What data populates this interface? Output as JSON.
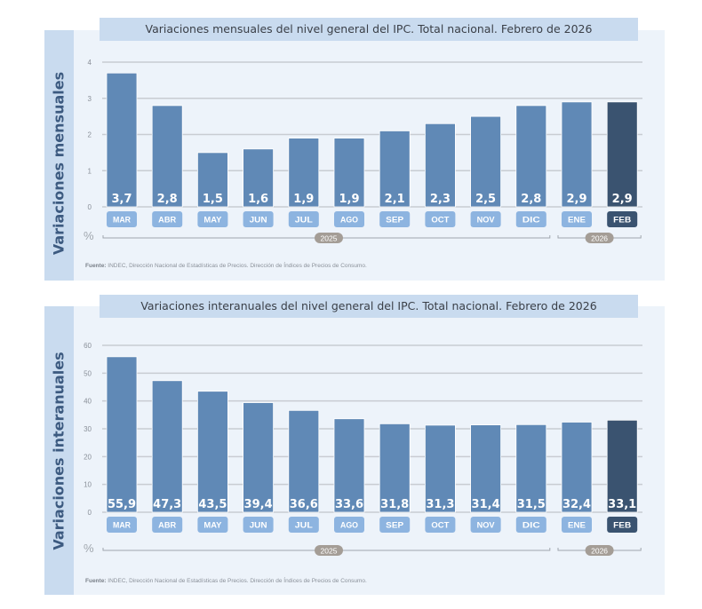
{
  "colors": {
    "bar": "#6089b6",
    "bar_highlight": "#3a5370",
    "month_tag": "#8db4e0",
    "month_tag_highlight": "#3a5370",
    "year_badge": "#a49d96",
    "grid": "#c8ccd2",
    "panel_bg": "#edf3fa",
    "strip_bg": "#c9dbef"
  },
  "chart_data": [
    {
      "type": "bar",
      "title": "Variaciones mensuales del nivel general del IPC. Total nacional. Febrero de 2026",
      "ylabel": "Variaciones mensuales",
      "unit_label": "%",
      "categories": [
        "MAR",
        "ABR",
        "MAY",
        "JUN",
        "JUL",
        "AGO",
        "SEP",
        "OCT",
        "NOV",
        "DIC",
        "ENE",
        "FEB"
      ],
      "values": [
        3.7,
        2.8,
        1.5,
        1.6,
        1.9,
        1.9,
        2.1,
        2.3,
        2.5,
        2.8,
        2.9,
        2.9
      ],
      "value_labels": [
        "3,7",
        "2,8",
        "1,5",
        "1,6",
        "1,9",
        "1,9",
        "2,1",
        "2,3",
        "2,5",
        "2,8",
        "2,9",
        "2,9"
      ],
      "highlight_index": 11,
      "ylim": [
        0,
        4
      ],
      "yticks": [
        "0",
        "1",
        "2",
        "3",
        "4"
      ],
      "grid": true,
      "year_groups": [
        {
          "label": "2025",
          "start": 0,
          "end": 9
        },
        {
          "label": "2026",
          "start": 10,
          "end": 11
        }
      ],
      "source_bold": "Fuente:",
      "source_text": " INDEC, Dirección Nacional de Estadísticas de Precios. Dirección de Índices de Precios de Consumo."
    },
    {
      "type": "bar",
      "title": "Variaciones interanuales del nivel general del IPC. Total nacional. Febrero de 2026",
      "ylabel": "Variaciones interanuales",
      "unit_label": "%",
      "categories": [
        "MAR",
        "ABR",
        "MAY",
        "JUN",
        "JUL",
        "AGO",
        "SEP",
        "OCT",
        "NOV",
        "DIC",
        "ENE",
        "FEB"
      ],
      "values": [
        55.9,
        47.3,
        43.5,
        39.4,
        36.6,
        33.6,
        31.8,
        31.3,
        31.4,
        31.5,
        32.4,
        33.1
      ],
      "value_labels": [
        "55,9",
        "47,3",
        "43,5",
        "39,4",
        "36,6",
        "33,6",
        "31,8",
        "31,3",
        "31,4",
        "31,5",
        "32,4",
        "33,1"
      ],
      "highlight_index": 11,
      "ylim": [
        0,
        60
      ],
      "yticks": [
        "0",
        "10",
        "20",
        "30",
        "40",
        "50",
        "60"
      ],
      "grid": true,
      "year_groups": [
        {
          "label": "2025",
          "start": 0,
          "end": 9
        },
        {
          "label": "2026",
          "start": 10,
          "end": 11
        }
      ],
      "source_bold": "Fuente:",
      "source_text": " INDEC, Dirección Nacional de Estadísticas de Precios. Dirección de Índices de Precios de Consumo."
    }
  ]
}
